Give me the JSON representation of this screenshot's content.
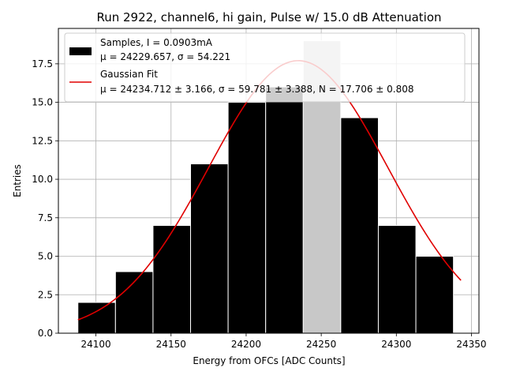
{
  "chart_data": {
    "type": "bar",
    "title": "Run 2922, channel6, hi gain, Pulse w/ 15.0 dB Attenuation",
    "xlabel": "Energy from OFCs [ADC Counts]",
    "ylabel": "Entries",
    "xlim": [
      24075,
      24355
    ],
    "ylim": [
      0,
      19.8
    ],
    "grid": true,
    "legend_position": "top-left",
    "x_ticks": [
      {
        "value": 24100,
        "label": "24100"
      },
      {
        "value": 24150,
        "label": "24150"
      },
      {
        "value": 24200,
        "label": "24200"
      },
      {
        "value": 24250,
        "label": "24250"
      },
      {
        "value": 24300,
        "label": "24300"
      },
      {
        "value": 24350,
        "label": "24350"
      }
    ],
    "y_ticks": [
      {
        "value": 0,
        "label": "0.0"
      },
      {
        "value": 2.5,
        "label": "2.5"
      },
      {
        "value": 5,
        "label": "5.0"
      },
      {
        "value": 7.5,
        "label": "7.5"
      },
      {
        "value": 10,
        "label": "10.0"
      },
      {
        "value": 12.5,
        "label": "12.5"
      },
      {
        "value": 15,
        "label": "15.0"
      },
      {
        "value": 17.5,
        "label": "17.5"
      }
    ],
    "bins": [
      {
        "x0": 24088,
        "x1": 24113,
        "count": 2
      },
      {
        "x0": 24113,
        "x1": 24138,
        "count": 4
      },
      {
        "x0": 24138,
        "x1": 24163,
        "count": 7
      },
      {
        "x0": 24163,
        "x1": 24188,
        "count": 11
      },
      {
        "x0": 24188,
        "x1": 24213,
        "count": 15
      },
      {
        "x0": 24213,
        "x1": 24238,
        "count": 16
      },
      {
        "x0": 24238,
        "x1": 24263,
        "count": 19
      },
      {
        "x0": 24263,
        "x1": 24288,
        "count": 14
      },
      {
        "x0": 24288,
        "x1": 24313,
        "count": 7
      },
      {
        "x0": 24313,
        "x1": 24338,
        "count": 5
      }
    ],
    "highlight_bin_color": "#c8c8c8",
    "bar_color": "#000000",
    "bar_edge_color": "#ffffff",
    "fit": {
      "mu": 24234.712,
      "sigma": 59.781,
      "N": 17.706,
      "x_range": [
        24088,
        24343
      ],
      "color": "#e00000"
    },
    "legend": {
      "samples_line1": "Samples, I = 0.0903mA",
      "samples_line2": "μ = 24229.657, σ = 54.221",
      "fit_line1": "Gaussian Fit",
      "fit_line2": "μ = 24234.712 ± 3.166, σ = 59.781 ± 3.388, N = 17.706 ± 0.808"
    }
  }
}
